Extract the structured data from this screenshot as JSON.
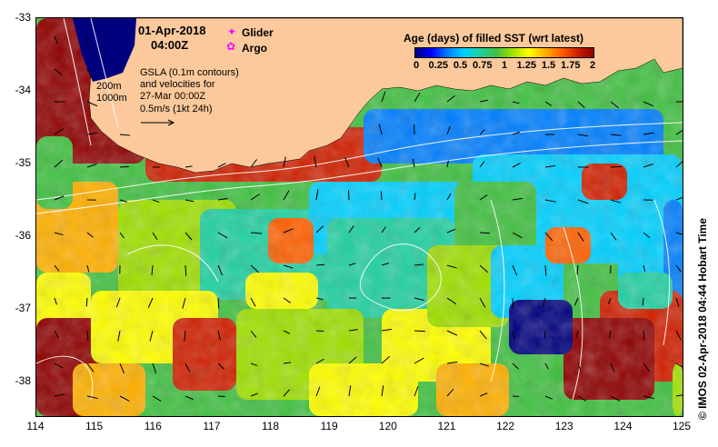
{
  "header": {
    "date": "01-Apr-2018",
    "time": "04:00Z"
  },
  "legend": {
    "glider_label": "Glider",
    "argo_label": "Argo",
    "glider_color": "#ff00ff",
    "argo_color": "#ff00ff"
  },
  "gsla_note": {
    "line1": "GSLA (0.1m contours)",
    "line2": "and velocities for",
    "line3": "27-Mar 00:00Z",
    "line4": "0.5m/s (1kt 24h)"
  },
  "depth_labels": {
    "d200": "200m",
    "d1000": "1000m"
  },
  "colorbar": {
    "title": "Age (days) of filled SST (wrt latest)",
    "ticks": [
      "0",
      "0.25",
      "0.5",
      "0.75",
      "1",
      "1.25",
      "1.5",
      "1.75",
      "2"
    ],
    "colors": [
      "#00007f",
      "#0000ff",
      "#007fff",
      "#00d0ff",
      "#20d0a0",
      "#40c040",
      "#a0e000",
      "#ffff00",
      "#ffb000",
      "#ff6000",
      "#d02000",
      "#900000"
    ]
  },
  "credit": "© IMOS 02-Apr-2018 04:44 Hobart Time",
  "axes": {
    "x_ticks": [
      "114",
      "115",
      "116",
      "117",
      "118",
      "119",
      "120",
      "121",
      "122",
      "123",
      "124",
      "125"
    ],
    "y_ticks": [
      "-33",
      "-34",
      "-35",
      "-36",
      "-37",
      "-38"
    ]
  },
  "colors": {
    "land": "#fbc99b",
    "contour": "#ffffff",
    "arrow": "#000000"
  }
}
